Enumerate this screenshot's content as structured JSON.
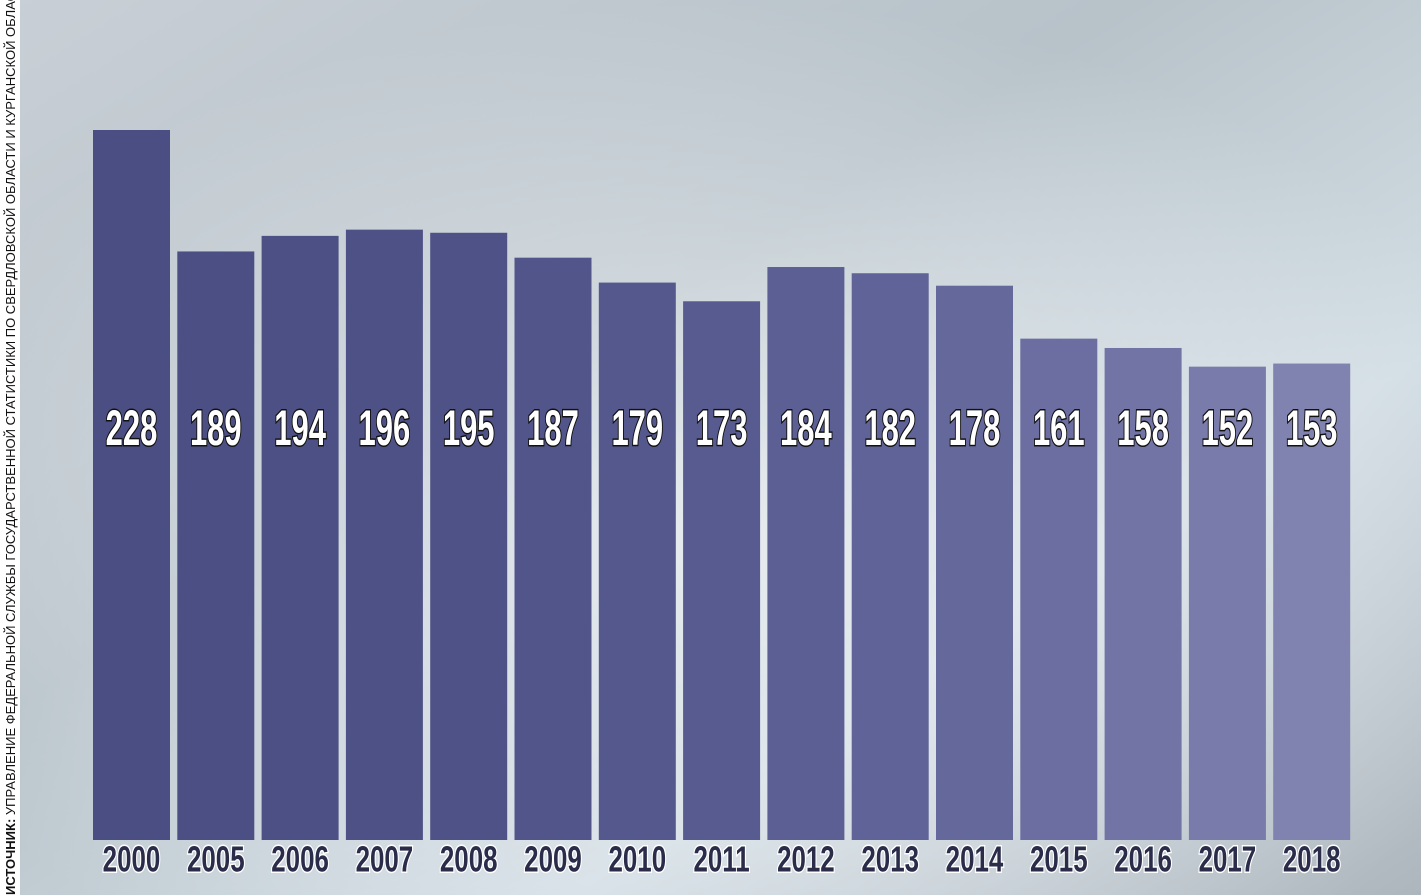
{
  "chart_data": {
    "type": "bar",
    "source_label": "ИСТОЧНИК:",
    "source": "УПРАВЛЕНИЕ ФЕДЕРАЛЬНОЙ СЛУЖБЫ ГОСУДАРСТВЕННОЙ СТАТИСТИКИ ПО СВЕРДЛОВСКОЙ ОБЛАСТИ И КУРГАНСКОЙ ОБЛАС",
    "categories": [
      "2000",
      "2005",
      "2006",
      "2007",
      "2008",
      "2009",
      "2010",
      "2011",
      "2012",
      "2013",
      "2014",
      "2015",
      "2016",
      "2017",
      "2018"
    ],
    "values": [
      228,
      189,
      194,
      196,
      195,
      187,
      179,
      173,
      184,
      182,
      178,
      161,
      158,
      152,
      153
    ],
    "colors": [
      "#4b4e82",
      "#4c4f83",
      "#4d5084",
      "#4e5185",
      "#4f5287",
      "#525589",
      "#55588c",
      "#585b8f",
      "#5c5f93",
      "#606397",
      "#65689b",
      "#6c6ea1",
      "#7274a6",
      "#797bab",
      "#8082b0"
    ]
  }
}
